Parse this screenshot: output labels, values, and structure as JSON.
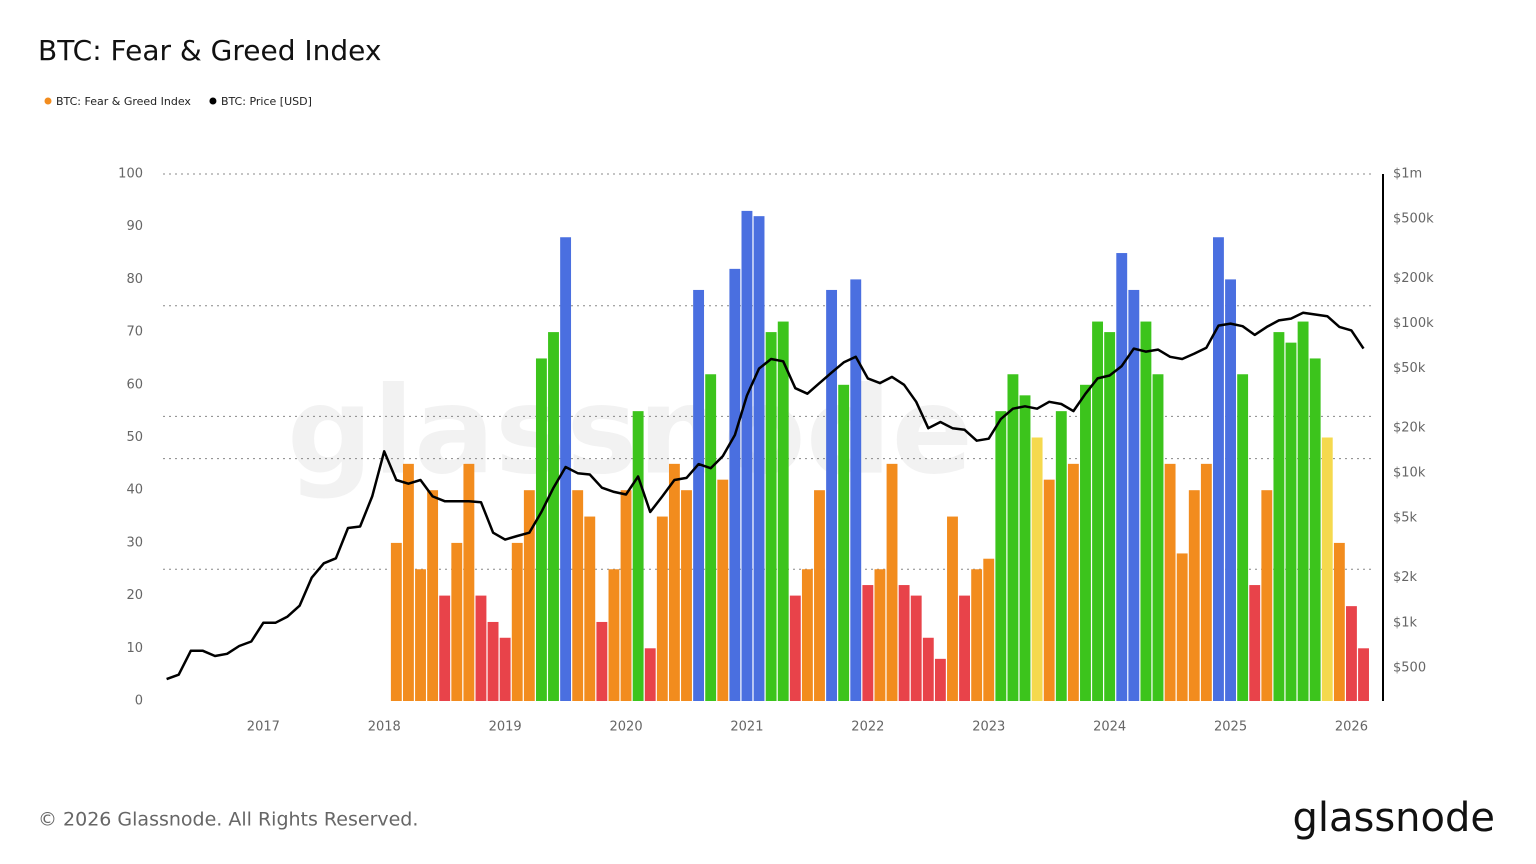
{
  "chart_data": {
    "type": "bar-line",
    "title": "BTC: Fear & Greed Index",
    "footer": "© 2026 Glassnode. All Rights Reserved.",
    "logo": "glassnode",
    "watermark": "glassnode",
    "x": [
      2016.2,
      2016.3,
      2016.4,
      2016.5,
      2016.6,
      2016.7,
      2016.8,
      2016.9,
      2017.0,
      2017.1,
      2017.2,
      2017.3,
      2017.4,
      2017.5,
      2017.6,
      2017.7,
      2017.8,
      2017.9,
      2018.0,
      2018.1,
      2018.2,
      2018.3,
      2018.4,
      2018.5,
      2018.6,
      2018.7,
      2018.8,
      2018.9,
      2019.0,
      2019.1,
      2019.2,
      2019.3,
      2019.4,
      2019.5,
      2019.6,
      2019.7,
      2019.8,
      2019.9,
      2020.0,
      2020.1,
      2020.2,
      2020.3,
      2020.4,
      2020.5,
      2020.6,
      2020.7,
      2020.8,
      2020.9,
      2021.0,
      2021.1,
      2021.2,
      2021.3,
      2021.4,
      2021.5,
      2021.6,
      2021.7,
      2021.8,
      2021.9,
      2022.0,
      2022.1,
      2022.2,
      2022.3,
      2022.4,
      2022.5,
      2022.6,
      2022.7,
      2022.8,
      2022.9,
      2023.0,
      2023.1,
      2023.2,
      2023.3,
      2023.4,
      2023.5,
      2023.6,
      2023.7,
      2023.8,
      2023.9,
      2024.0,
      2024.1,
      2024.2,
      2024.3,
      2024.4,
      2024.5,
      2024.6,
      2024.7,
      2024.8,
      2024.9,
      2025.0,
      2025.1,
      2025.2,
      2025.3,
      2025.4,
      2025.5,
      2025.6,
      2025.7,
      2025.8,
      2025.9,
      2026.0,
      2026.1
    ],
    "xlim": [
      2016.17,
      2026.17
    ],
    "xticks": [
      2017,
      2018,
      2019,
      2020,
      2021,
      2022,
      2023,
      2024,
      2025,
      2026
    ],
    "ylim": [
      0,
      100
    ],
    "yticks": [
      0,
      10,
      20,
      30,
      40,
      50,
      60,
      70,
      80,
      90,
      100
    ],
    "y2lim": [
      300,
      1000000
    ],
    "y2scale": "log",
    "y2ticks": [
      {
        "value": 500,
        "label": "$500"
      },
      {
        "value": 1000,
        "label": "$1k"
      },
      {
        "value": 2000,
        "label": "$2k"
      },
      {
        "value": 5000,
        "label": "$5k"
      },
      {
        "value": 10000,
        "label": "$10k"
      },
      {
        "value": 20000,
        "label": "$20k"
      },
      {
        "value": 50000,
        "label": "$50k"
      },
      {
        "value": 100000,
        "label": "$100k"
      },
      {
        "value": 200000,
        "label": "$200k"
      },
      {
        "value": 500000,
        "label": "$500k"
      },
      {
        "value": 1000000,
        "label": "$1m"
      }
    ],
    "thresholds": [
      25,
      46,
      54,
      75
    ],
    "zone_colors": [
      "#e8434a",
      "#f28c1e",
      "#f5d94e",
      "#3cc41c",
      "#4a6fe0"
    ],
    "series": [
      {
        "name": "BTC: Fear & Greed Index",
        "color": "#f28c1e",
        "values": [
          null,
          null,
          null,
          null,
          null,
          null,
          null,
          null,
          null,
          null,
          null,
          null,
          null,
          null,
          null,
          null,
          null,
          null,
          null,
          30,
          45,
          25,
          40,
          20,
          30,
          45,
          20,
          15,
          12,
          30,
          40,
          65,
          70,
          88,
          40,
          35,
          15,
          25,
          40,
          55,
          10,
          35,
          45,
          40,
          78,
          62,
          42,
          82,
          93,
          92,
          70,
          72,
          20,
          25,
          40,
          78,
          60,
          80,
          22,
          25,
          45,
          22,
          20,
          12,
          8,
          35,
          20,
          25,
          27,
          55,
          62,
          58,
          50,
          42,
          55,
          45,
          60,
          72,
          70,
          85,
          78,
          72,
          62,
          45,
          28,
          40,
          45,
          88,
          80,
          62,
          22,
          40,
          70,
          68,
          72,
          65,
          50,
          30,
          18,
          10
        ]
      },
      {
        "name": "BTC: Price [USD]",
        "color": "#000000",
        "axis": "y2",
        "values": [
          420,
          450,
          650,
          650,
          600,
          620,
          700,
          750,
          1000,
          1000,
          1100,
          1300,
          2000,
          2500,
          2700,
          4300,
          4400,
          7000,
          14000,
          9000,
          8500,
          9000,
          7000,
          6500,
          6500,
          6500,
          6400,
          4000,
          3600,
          3800,
          4000,
          5500,
          8000,
          11000,
          10000,
          9800,
          8000,
          7500,
          7200,
          9500,
          5500,
          7000,
          9000,
          9300,
          11500,
          10800,
          13000,
          18000,
          33000,
          50000,
          58000,
          56000,
          37000,
          34000,
          40000,
          47000,
          55000,
          60000,
          43000,
          40000,
          44000,
          39000,
          30000,
          20000,
          22000,
          20000,
          19500,
          16500,
          17000,
          23000,
          27000,
          28000,
          27000,
          30000,
          29000,
          26000,
          34000,
          43000,
          45000,
          52000,
          68000,
          65000,
          67000,
          60000,
          58000,
          63000,
          69000,
          97000,
          100000,
          96000,
          84000,
          95000,
          105000,
          108000,
          118000,
          115000,
          112000,
          95000,
          90000,
          68000
        ]
      }
    ]
  }
}
